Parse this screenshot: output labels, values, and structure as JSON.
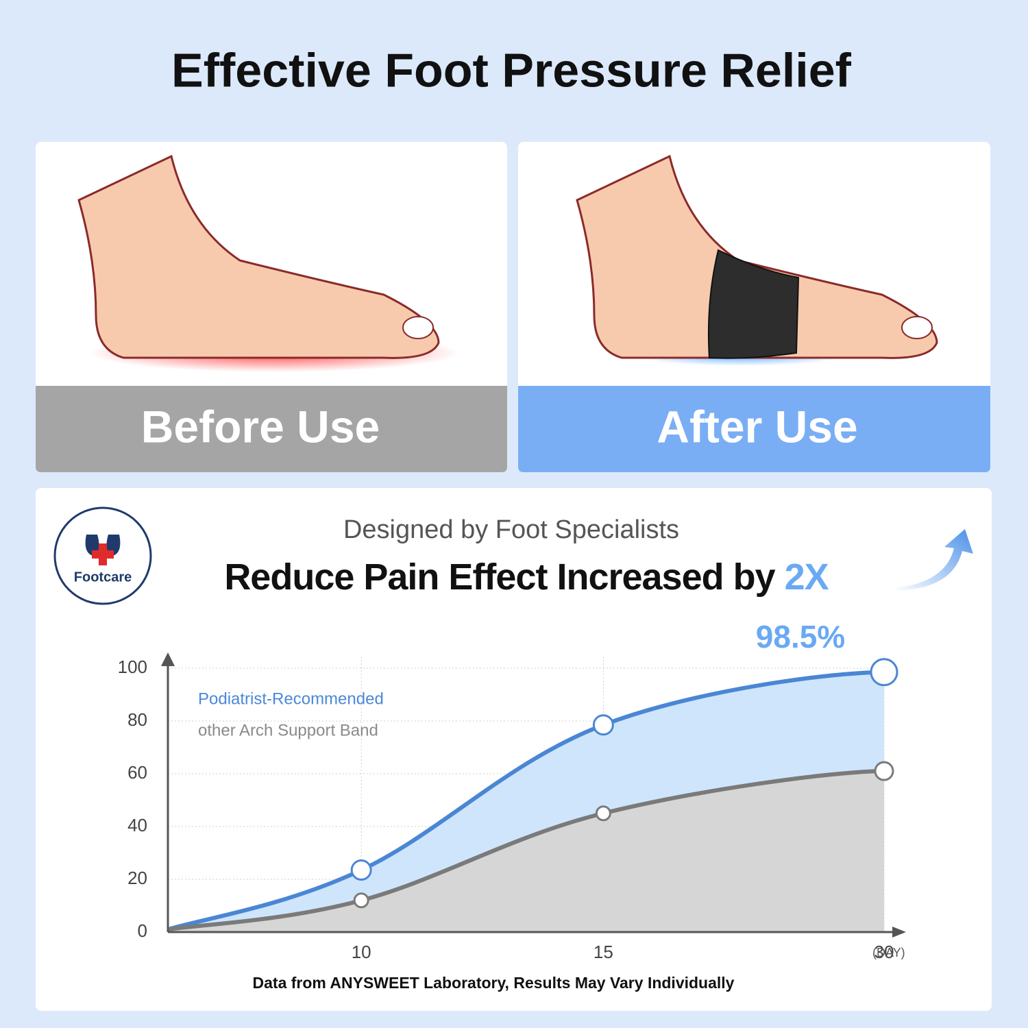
{
  "header": {
    "title": "Effective Foot Pressure Relief"
  },
  "panels": [
    {
      "label": "Before Use"
    },
    {
      "label": "After Use"
    }
  ],
  "badge": {
    "label": "Footcare"
  },
  "chart_data": {
    "type": "line",
    "subtitle": "Designed by Foot Specialists",
    "title": "Reduce Pain Effect Increased by",
    "title_highlight": "2X",
    "categories": [
      null,
      "10",
      "15",
      "30"
    ],
    "x_label": "(DAY)",
    "series": [
      {
        "name": "Podiatrist-Recommended",
        "color": "#4a86d4",
        "fill": "#cfe5fb",
        "values": [
          1,
          23.5,
          78.5,
          98.5
        ],
        "value_labels": [
          null,
          null,
          null,
          "98.5%"
        ]
      },
      {
        "name": "other Arch Support Band",
        "color": "#7a7a7a",
        "fill": "#d6d6d6",
        "values": [
          1,
          12,
          45,
          61
        ]
      }
    ],
    "ylim": [
      0,
      100
    ],
    "yticks": [
      0,
      20,
      40,
      60,
      80,
      100
    ],
    "grid": true,
    "note": "Data from ANYSWEET Laboratory, Results May Vary Individually"
  }
}
